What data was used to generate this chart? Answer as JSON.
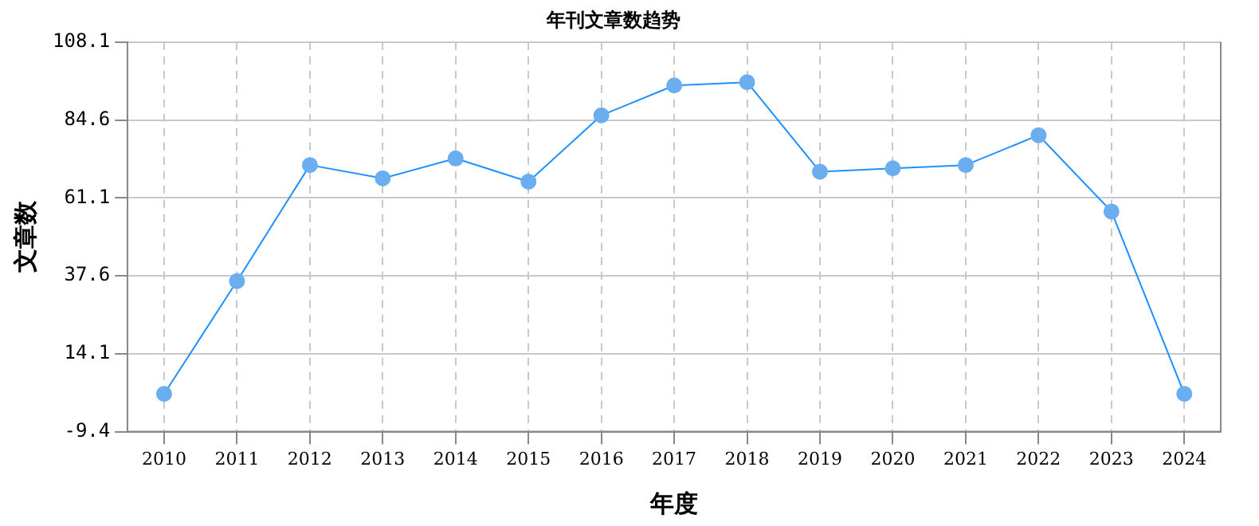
{
  "chart_data": {
    "type": "line",
    "title": "年刊文章数趋势",
    "xlabel": "年度",
    "ylabel": "文章数",
    "categories": [
      "2010",
      "2011",
      "2012",
      "2013",
      "2014",
      "2015",
      "2016",
      "2017",
      "2018",
      "2019",
      "2020",
      "2021",
      "2022",
      "2023",
      "2024"
    ],
    "series": [
      {
        "color": "#1e90ff",
        "values": [
          2,
          36,
          71,
          67,
          73,
          66,
          86,
          95,
          96,
          69,
          70,
          71,
          80,
          57,
          2
        ]
      }
    ],
    "ylim": [
      -9.4,
      108.1
    ],
    "yticks": [
      -9.4,
      14.1,
      37.6,
      61.1,
      84.6,
      108.1
    ],
    "grid": true,
    "legend": false,
    "marker": "circle",
    "line_style": "solid"
  }
}
